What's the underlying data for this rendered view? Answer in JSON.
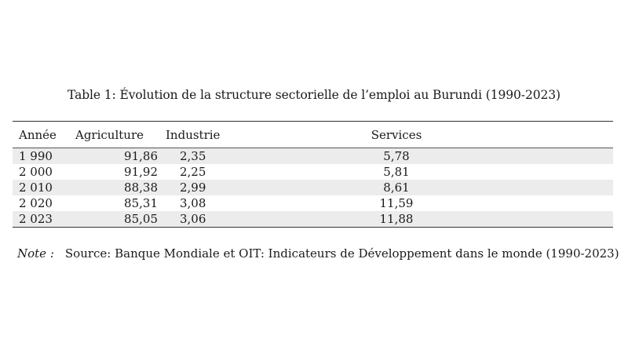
{
  "caption": "Table 1: Évolution de la structure sectorielle de l’emploi au Burundi (1990-2023)",
  "columns": [
    "Année",
    "Agriculture",
    "Industrie",
    "Services"
  ],
  "rows": [
    {
      "year": "1 990",
      "agriculture": "91,86",
      "industrie": "2,35",
      "services": "5,78"
    },
    {
      "year": "2 000",
      "agriculture": "91,92",
      "industrie": "2,25",
      "services": "5,81"
    },
    {
      "year": "2 010",
      "agriculture": "88,38",
      "industrie": "2,99",
      "services": "8,61"
    },
    {
      "year": "2 020",
      "agriculture": "85,31",
      "industrie": "3,08",
      "services": "11,59"
    },
    {
      "year": "2 023",
      "agriculture": "85,05",
      "industrie": "3,06",
      "services": "11,88"
    }
  ],
  "note": {
    "label": "Note :",
    "text": "Source: Banque Mondiale et OIT: Indicateurs de Développement dans le monde (1990-2023)"
  }
}
